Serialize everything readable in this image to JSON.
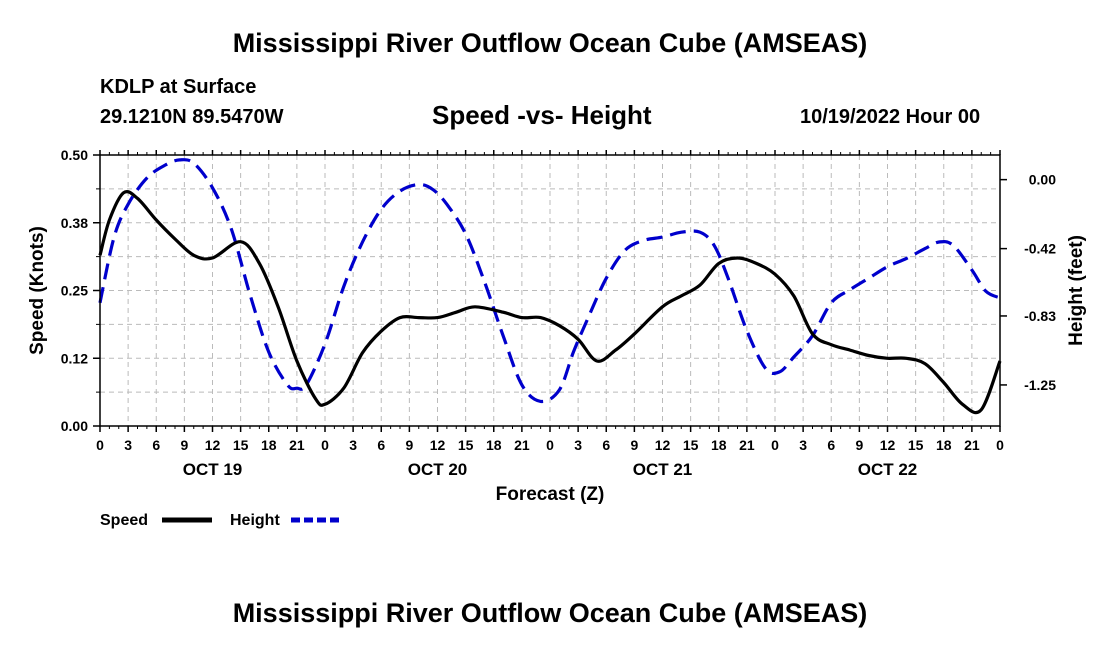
{
  "header": {
    "title": "Mississippi River Outflow Ocean Cube (AMSEAS)",
    "station": "KDLP at Surface",
    "coords": "29.1210N  89.5470W",
    "subtitle": "Speed -vs- Height",
    "datetime": "10/19/2022 Hour 00",
    "footer_title": "Mississippi River Outflow Ocean Cube (AMSEAS)"
  },
  "colors": {
    "speed": "#000000",
    "height": "#0000cc",
    "grid": "#bbbbbb"
  },
  "chart_data": {
    "type": "line",
    "title": "Speed -vs- Height",
    "xlabel": "Forecast (Z)",
    "ylabel": "Speed (Knots)",
    "y2label": "Height (feet)",
    "xlim": [
      0,
      96
    ],
    "ylim": [
      0,
      0.5
    ],
    "y2lim": [
      -1.5,
      0.15
    ],
    "x_ticks": [
      0,
      3,
      6,
      9,
      12,
      15,
      18,
      21,
      24,
      27,
      30,
      33,
      36,
      39,
      42,
      45,
      48,
      51,
      54,
      57,
      60,
      63,
      66,
      69,
      72,
      75,
      78,
      81,
      84,
      87,
      90,
      93,
      96
    ],
    "x_tick_labels": [
      "0",
      "3",
      "6",
      "9",
      "12",
      "15",
      "18",
      "21",
      "0",
      "3",
      "6",
      "9",
      "12",
      "15",
      "18",
      "21",
      "0",
      "3",
      "6",
      "9",
      "12",
      "15",
      "18",
      "21",
      "0",
      "3",
      "6",
      "9",
      "12",
      "15",
      "18",
      "21",
      "0"
    ],
    "y_ticks": [
      0,
      0.125,
      0.25,
      0.375,
      0.5
    ],
    "y_tick_labels": [
      "0.00",
      "0.12",
      "0.25",
      "0.38",
      "0.50"
    ],
    "y2_ticks": [
      0,
      -0.42,
      -0.83,
      -1.25
    ],
    "y2_tick_labels": [
      "0.00",
      "-0.42",
      "-0.83",
      "-1.25"
    ],
    "day_labels": [
      {
        "x": 12,
        "label": "OCT 19"
      },
      {
        "x": 36,
        "label": "OCT 20"
      },
      {
        "x": 60,
        "label": "OCT 21"
      },
      {
        "x": 84,
        "label": "OCT 22"
      }
    ],
    "legend_placement": "bottom-left",
    "series": [
      {
        "name": "Speed",
        "axis": "left",
        "style": "solid",
        "x": [
          0,
          1,
          2.5,
          4,
          6,
          8,
          10,
          12,
          15,
          17,
          19,
          21,
          23,
          24,
          26,
          28,
          30,
          32,
          34,
          36,
          38,
          40,
          43,
          45,
          47,
          49,
          51,
          53,
          55,
          57,
          60,
          62,
          64,
          66,
          68,
          70,
          72,
          74,
          76,
          78,
          80,
          82,
          84,
          86,
          88,
          90,
          92,
          94,
          96
        ],
        "y": [
          0.315,
          0.38,
          0.43,
          0.42,
          0.38,
          0.345,
          0.315,
          0.31,
          0.34,
          0.3,
          0.22,
          0.12,
          0.05,
          0.04,
          0.07,
          0.135,
          0.175,
          0.2,
          0.2,
          0.2,
          0.21,
          0.22,
          0.21,
          0.2,
          0.2,
          0.185,
          0.16,
          0.12,
          0.14,
          0.17,
          0.22,
          0.24,
          0.26,
          0.3,
          0.31,
          0.3,
          0.28,
          0.24,
          0.17,
          0.15,
          0.14,
          0.13,
          0.125,
          0.125,
          0.115,
          0.08,
          0.04,
          0.03,
          0.12
        ]
      },
      {
        "name": "Height",
        "axis": "right",
        "style": "dashed",
        "x": [
          0,
          1.5,
          3,
          5,
          7,
          8.5,
          10,
          12,
          14,
          16,
          18,
          20,
          21,
          22,
          24,
          26,
          28,
          30,
          32,
          34,
          35.5,
          37,
          39,
          41,
          43,
          45,
          47,
          49,
          50.5,
          52,
          54,
          56,
          58,
          60,
          62,
          64,
          65.5,
          67,
          69,
          71,
          72.5,
          74,
          76,
          78,
          80,
          82,
          84,
          86,
          88,
          89.5,
          91,
          93,
          94.5,
          96
        ],
        "y": [
          -0.75,
          -0.35,
          -0.15,
          0.01,
          0.09,
          0.12,
          0.1,
          -0.05,
          -0.3,
          -0.7,
          -1.05,
          -1.25,
          -1.27,
          -1.25,
          -1.0,
          -0.65,
          -0.38,
          -0.18,
          -0.07,
          -0.03,
          -0.06,
          -0.15,
          -0.33,
          -0.62,
          -0.95,
          -1.25,
          -1.35,
          -1.28,
          -1.05,
          -0.85,
          -0.6,
          -0.43,
          -0.37,
          -0.35,
          -0.32,
          -0.32,
          -0.4,
          -0.6,
          -0.92,
          -1.15,
          -1.17,
          -1.08,
          -0.95,
          -0.75,
          -0.67,
          -0.6,
          -0.53,
          -0.48,
          -0.42,
          -0.38,
          -0.4,
          -0.55,
          -0.68,
          -0.72
        ]
      }
    ]
  }
}
